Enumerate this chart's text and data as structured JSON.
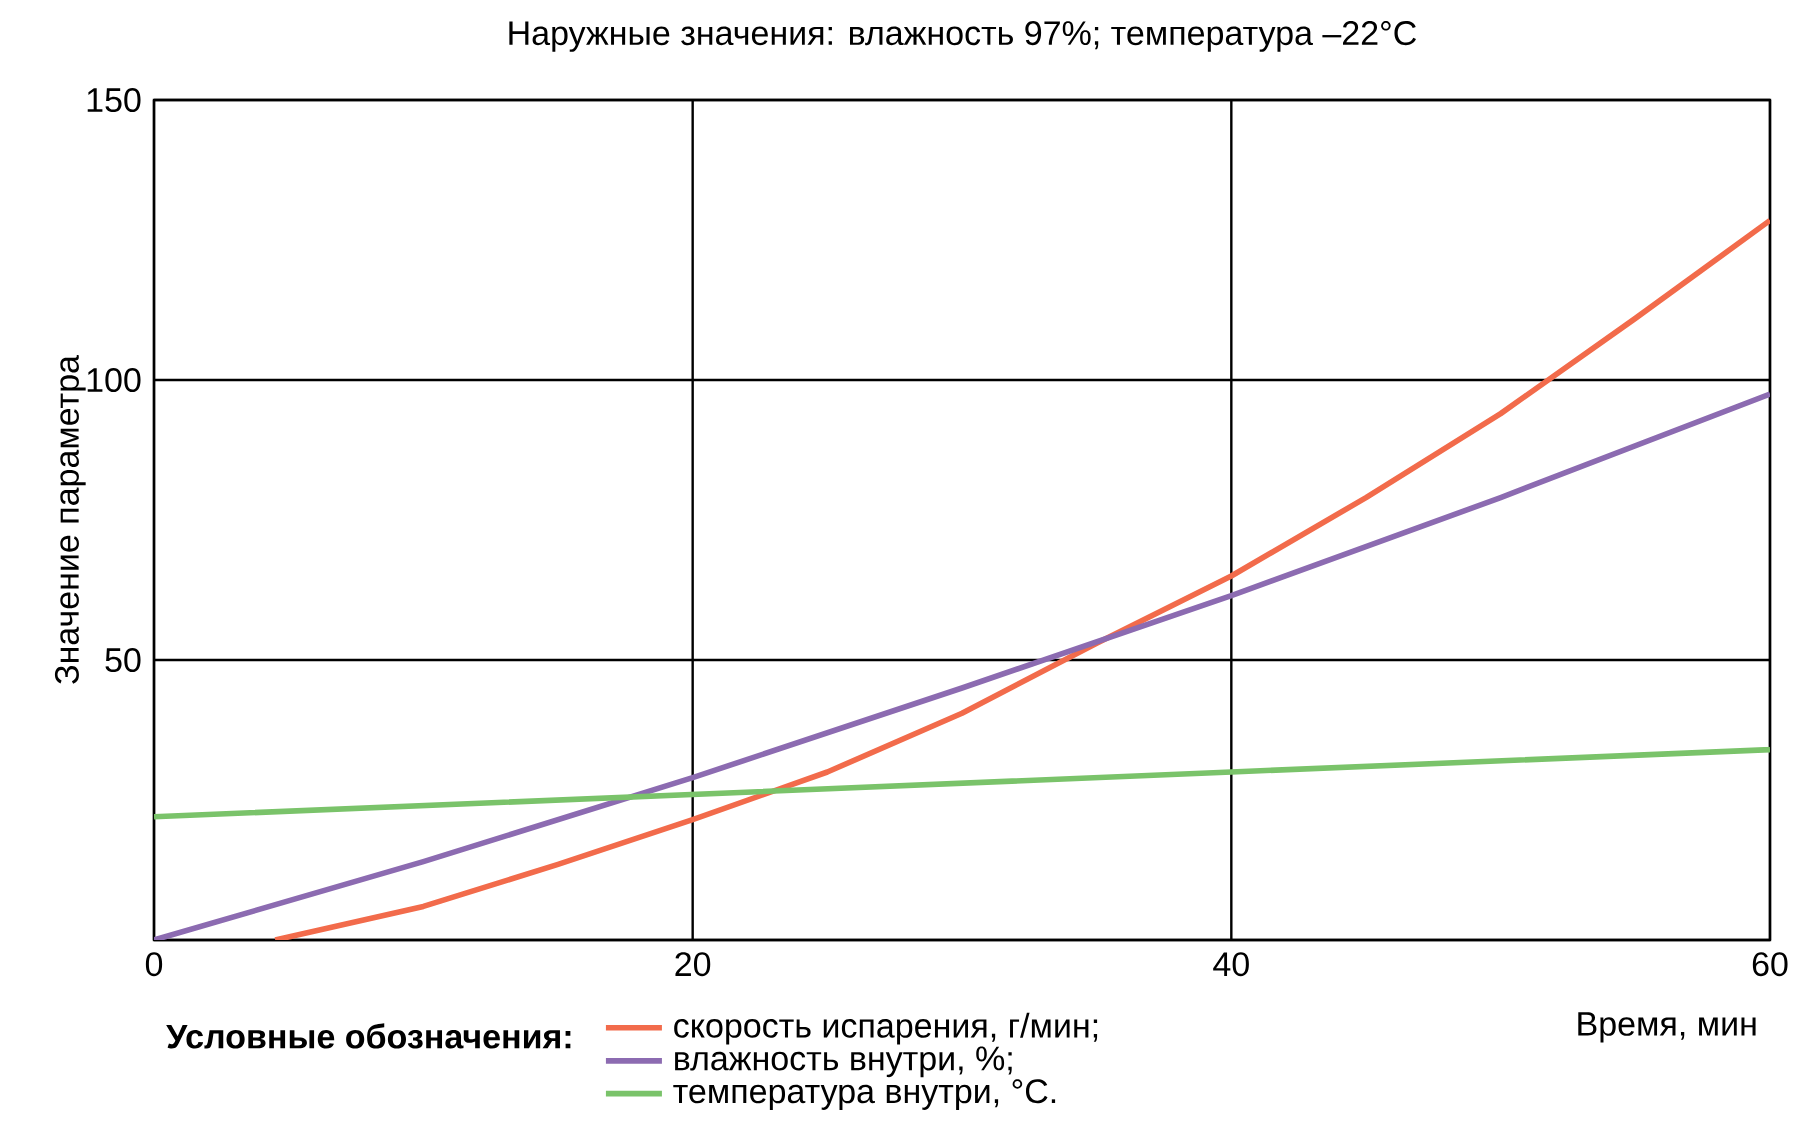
{
  "chart_data": {
    "type": "line",
    "title": "Наружные значения: влажность 97%; температура –22°C",
    "xlabel": "Время, мин",
    "ylabel": "Значение параметра",
    "legend_title": "Условные обозначения:",
    "xlim": [
      0,
      60
    ],
    "xticks": [
      0,
      20,
      40,
      60
    ],
    "ylim": [
      0,
      150
    ],
    "yticks": [
      {
        "value": 0,
        "label": null
      },
      50,
      100,
      150
    ],
    "grid": true,
    "legend": "bottom",
    "series": [
      {
        "name": "скорость испарения, г/мин;",
        "color": "#f26b4b",
        "x": [
          4.5,
          10,
          15,
          20,
          25,
          30,
          35,
          40,
          45,
          50,
          55,
          60
        ],
        "values": [
          0,
          6,
          13.5,
          21.5,
          30,
          40.5,
          53,
          65,
          79,
          94,
          111,
          128.5
        ]
      },
      {
        "name": "влажность внутри, %;",
        "color": "#8c6bb1",
        "x": [
          0,
          10,
          20,
          30,
          40,
          50,
          60
        ],
        "values": [
          0,
          14,
          29,
          45,
          61.5,
          79,
          97.5
        ]
      },
      {
        "name": "температура внутри, °С.",
        "color": "#7ac36a",
        "x": [
          0,
          20,
          40,
          60
        ],
        "values": [
          22,
          26,
          30,
          34
        ]
      }
    ]
  }
}
